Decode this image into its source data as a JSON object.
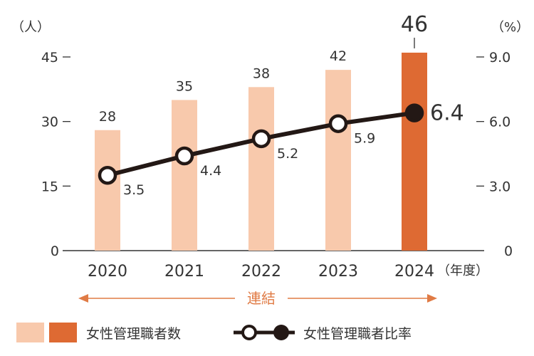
{
  "chart_data": {
    "type": "bar+line",
    "categories": [
      "2020",
      "2021",
      "2022",
      "2023",
      "2024"
    ],
    "x_unit": "（年度）",
    "y_left": {
      "unit": "（人）",
      "ticks": [
        "0",
        "15",
        "30",
        "45"
      ],
      "range": [
        0,
        45
      ]
    },
    "y_right": {
      "unit": "（%）",
      "ticks": [
        "0",
        "3.0",
        "6.0",
        "9.0"
      ],
      "range": [
        0,
        9.0
      ]
    },
    "series": [
      {
        "name": "女性管理職者数",
        "kind": "bar",
        "axis": "left",
        "values": [
          28,
          35,
          38,
          42,
          46
        ],
        "labels": [
          "28",
          "35",
          "38",
          "42",
          "46"
        ],
        "colors": [
          "#f8c9ac",
          "#f8c9ac",
          "#f8c9ac",
          "#f8c9ac",
          "#de6a33"
        ]
      },
      {
        "name": "女性管理職者比率",
        "kind": "line",
        "axis": "right",
        "values": [
          3.5,
          4.4,
          5.2,
          5.9,
          6.4
        ],
        "labels": [
          "3.5",
          "4.4",
          "5.2",
          "5.9",
          "6.4"
        ],
        "color": "#231815"
      }
    ],
    "annotation": {
      "text": "連結",
      "color": "#e07b45"
    },
    "grid": false,
    "legend_position": "bottom-left"
  }
}
